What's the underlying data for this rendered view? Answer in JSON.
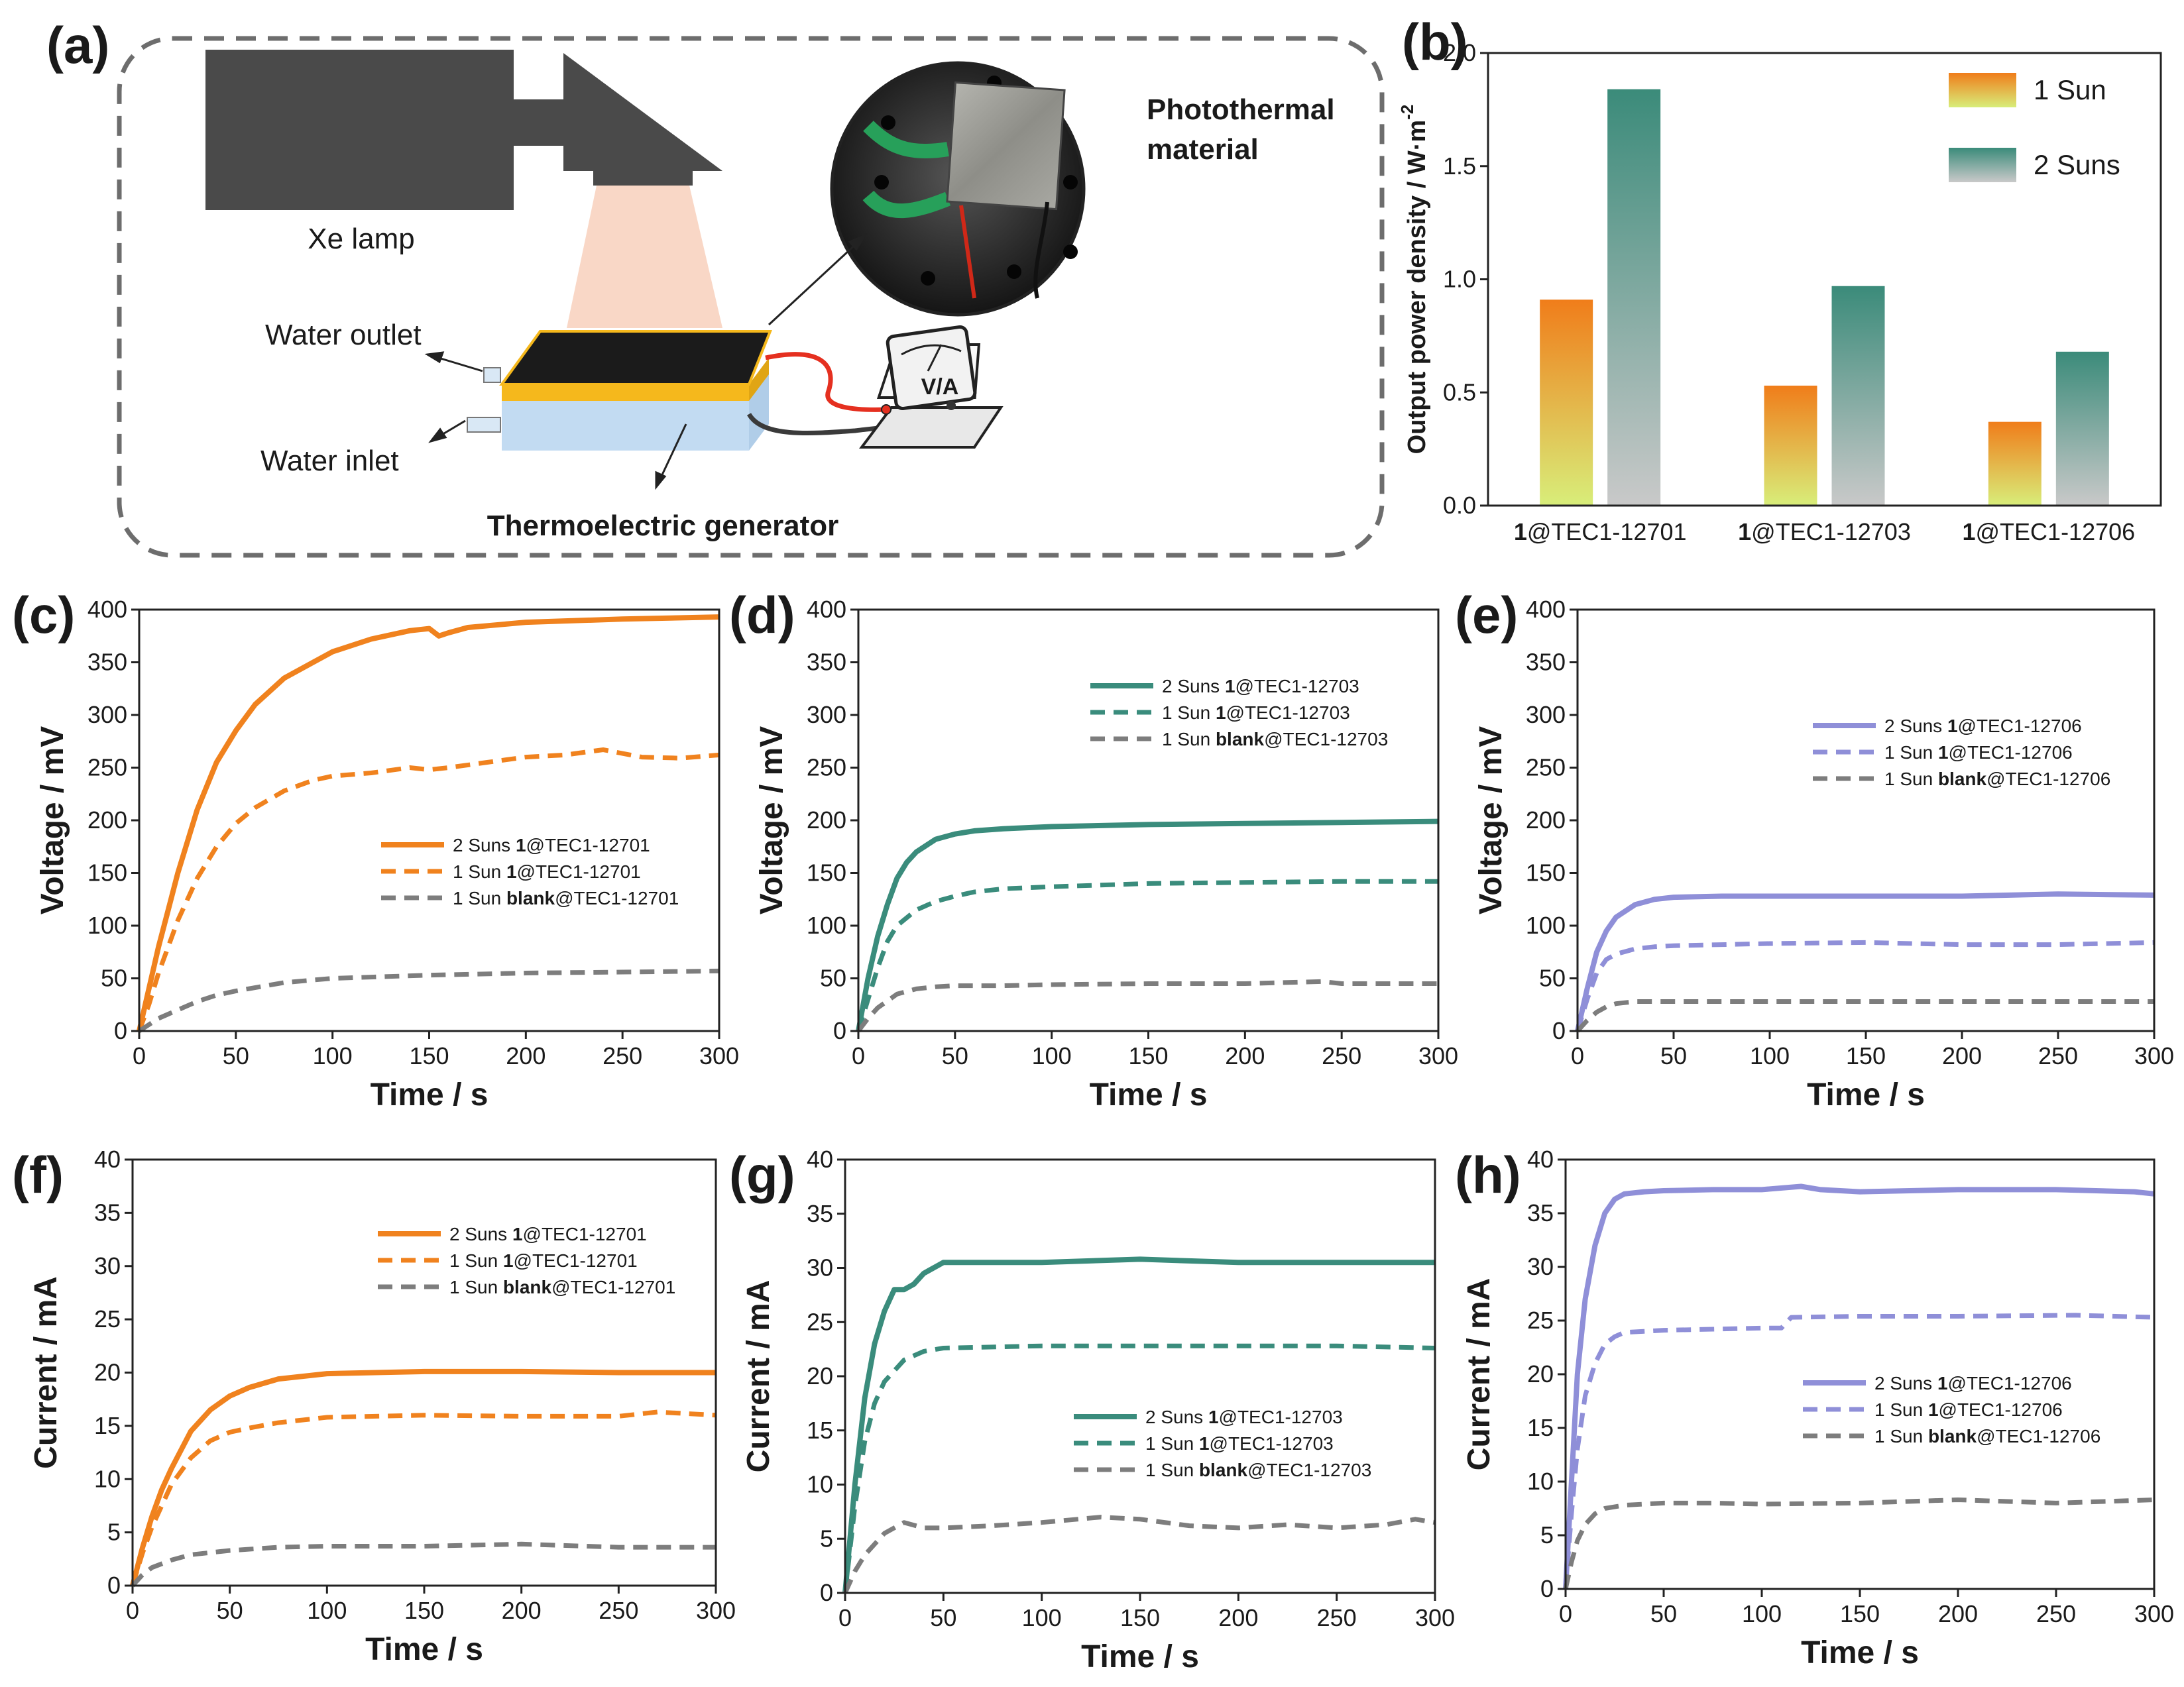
{
  "panels": {
    "a": {
      "label": "(a)",
      "xe_lamp": "Xe lamp",
      "water_outlet": "Water outlet",
      "water_inlet": "Water inlet",
      "photothermal": [
        "Photothermal",
        "material"
      ],
      "generator": "Thermoelectric generator",
      "meter_text": "V/A"
    },
    "b": {
      "label": "(b)"
    },
    "c": {
      "label": "(c)"
    },
    "d": {
      "label": "(d)"
    },
    "e": {
      "label": "(e)"
    },
    "f": {
      "label": "(f)"
    },
    "g": {
      "label": "(g)"
    },
    "h": {
      "label": "(h)"
    }
  },
  "colors": {
    "orange": "#f0821e",
    "teal": "#3a8c7c",
    "purple": "#8f8fd8",
    "gray": "#7d7d7d",
    "bar_orange_top": "#f07d1a",
    "bar_orange_bottom": "#d8ee7a",
    "bar_teal_top": "#3b8b7a",
    "bar_teal_bottom": "#c9c9c9"
  },
  "chart_data": [
    {
      "id": "b",
      "type": "bar",
      "categories": [
        {
          "bold": "1",
          "text": "@TEC1-12701"
        },
        {
          "bold": "1",
          "text": "@TEC1-12703"
        },
        {
          "bold": "1",
          "text": "@TEC1-12706"
        }
      ],
      "series": [
        {
          "name": "1 Sun",
          "values": [
            0.91,
            0.53,
            0.37
          ],
          "gradient": "orange"
        },
        {
          "name": "2 Suns",
          "values": [
            1.84,
            0.97,
            0.68
          ],
          "gradient": "teal"
        }
      ],
      "ylabel": "Output power density / W·m",
      "ylabel_sup": "-2",
      "ylim": [
        0,
        2.0
      ],
      "yticks": [
        "0.0",
        "0.5",
        "1.0",
        "1.5",
        "2.0"
      ],
      "legend_position": "top-right"
    },
    {
      "id": "c",
      "type": "line",
      "xlabel": "Time / s",
      "ylabel": "Voltage / mV",
      "xlim": [
        0,
        300
      ],
      "ylim": [
        0,
        400
      ],
      "xticks": [
        "0",
        "50",
        "100",
        "150",
        "200",
        "250",
        "300"
      ],
      "yticks": [
        "0",
        "50",
        "100",
        "150",
        "200",
        "250",
        "300",
        "350",
        "400"
      ],
      "legend_position": "center-right",
      "series": [
        {
          "prefix": "2 Suns ",
          "bold": "1",
          "suffix": "@TEC1-12701",
          "color": "orange",
          "dash": "solid",
          "x": [
            0,
            5,
            10,
            15,
            20,
            30,
            40,
            50,
            60,
            75,
            90,
            100,
            120,
            140,
            150,
            155,
            160,
            170,
            200,
            250,
            300
          ],
          "y": [
            0,
            40,
            80,
            115,
            150,
            210,
            255,
            285,
            310,
            335,
            350,
            360,
            372,
            380,
            382,
            375,
            378,
            383,
            388,
            391,
            393
          ]
        },
        {
          "prefix": "1 Sun ",
          "bold": "1",
          "suffix": "@TEC1-12701",
          "color": "orange",
          "dash": "dashed",
          "x": [
            0,
            5,
            10,
            15,
            20,
            30,
            40,
            50,
            60,
            75,
            90,
            100,
            120,
            140,
            150,
            160,
            180,
            200,
            220,
            240,
            260,
            280,
            300
          ],
          "y": [
            0,
            25,
            55,
            80,
            105,
            145,
            175,
            197,
            212,
            228,
            238,
            242,
            245,
            250,
            248,
            250,
            255,
            260,
            262,
            267,
            260,
            259,
            262
          ]
        },
        {
          "prefix": "1 Sun ",
          "bold": "blank",
          "suffix": "@TEC1-12701",
          "color": "gray",
          "dash": "dashed",
          "x": [
            0,
            10,
            20,
            30,
            40,
            50,
            75,
            100,
            150,
            200,
            250,
            300
          ],
          "y": [
            0,
            12,
            20,
            28,
            34,
            38,
            46,
            50,
            53,
            55,
            56,
            57
          ]
        }
      ]
    },
    {
      "id": "d",
      "type": "line",
      "xlabel": "Time / s",
      "ylabel": "Voltage / mV",
      "xlim": [
        0,
        300
      ],
      "ylim": [
        0,
        400
      ],
      "xticks": [
        "0",
        "50",
        "100",
        "150",
        "200",
        "250",
        "300"
      ],
      "yticks": [
        "0",
        "50",
        "100",
        "150",
        "200",
        "250",
        "300",
        "350",
        "400"
      ],
      "legend_position": "top-right",
      "series": [
        {
          "prefix": "2 Suns ",
          "bold": "1",
          "suffix": "@TEC1-12703",
          "color": "teal",
          "dash": "solid",
          "x": [
            0,
            5,
            10,
            15,
            20,
            25,
            30,
            40,
            50,
            60,
            75,
            100,
            150,
            200,
            250,
            300
          ],
          "y": [
            0,
            50,
            90,
            120,
            145,
            160,
            170,
            182,
            187,
            190,
            192,
            194,
            196,
            197,
            198,
            199
          ]
        },
        {
          "prefix": "1 Sun ",
          "bold": "1",
          "suffix": "@TEC1-12703",
          "color": "teal",
          "dash": "dashed",
          "x": [
            0,
            5,
            10,
            15,
            20,
            30,
            40,
            50,
            60,
            75,
            100,
            150,
            200,
            250,
            300
          ],
          "y": [
            0,
            30,
            60,
            85,
            100,
            115,
            123,
            128,
            132,
            135,
            137,
            140,
            141,
            142,
            142
          ]
        },
        {
          "prefix": "1 Sun ",
          "bold": "blank",
          "suffix": "@TEC1-12703",
          "color": "gray",
          "dash": "dashed",
          "x": [
            0,
            5,
            10,
            20,
            30,
            40,
            50,
            75,
            100,
            150,
            200,
            240,
            250,
            300
          ],
          "y": [
            0,
            12,
            22,
            35,
            40,
            42,
            43,
            43,
            44,
            45,
            45,
            47,
            45,
            45
          ]
        }
      ]
    },
    {
      "id": "e",
      "type": "line",
      "xlabel": "Time / s",
      "ylabel": "Voltage / mV",
      "xlim": [
        0,
        300
      ],
      "ylim": [
        0,
        400
      ],
      "xticks": [
        "0",
        "50",
        "100",
        "150",
        "200",
        "250",
        "300"
      ],
      "yticks": [
        "0",
        "50",
        "100",
        "150",
        "200",
        "250",
        "300",
        "350",
        "400"
      ],
      "legend_position": "top-right",
      "series": [
        {
          "prefix": "2 Suns ",
          "bold": "1",
          "suffix": "@TEC1-12706",
          "color": "purple",
          "dash": "solid",
          "x": [
            0,
            5,
            10,
            15,
            20,
            30,
            40,
            50,
            75,
            100,
            150,
            200,
            250,
            300
          ],
          "y": [
            0,
            40,
            75,
            95,
            108,
            120,
            125,
            127,
            128,
            128,
            128,
            128,
            130,
            129
          ]
        },
        {
          "prefix": "1 Sun ",
          "bold": "1",
          "suffix": "@TEC1-12706",
          "color": "purple",
          "dash": "dashed",
          "x": [
            0,
            5,
            10,
            15,
            20,
            30,
            40,
            50,
            75,
            100,
            150,
            200,
            250,
            300
          ],
          "y": [
            0,
            30,
            55,
            68,
            73,
            78,
            80,
            81,
            82,
            83,
            84,
            82,
            82,
            84
          ]
        },
        {
          "prefix": "1 Sun ",
          "bold": "blank",
          "suffix": "@TEC1-12706",
          "color": "gray",
          "dash": "dashed",
          "x": [
            0,
            5,
            10,
            15,
            20,
            30,
            50,
            100,
            150,
            200,
            250,
            300
          ],
          "y": [
            0,
            10,
            18,
            23,
            26,
            28,
            28,
            28,
            28,
            28,
            28,
            28
          ]
        }
      ]
    },
    {
      "id": "f",
      "type": "line",
      "xlabel": "Time / s",
      "ylabel": "Current / mA",
      "xlim": [
        0,
        300
      ],
      "ylim": [
        0,
        40
      ],
      "xticks": [
        "0",
        "50",
        "100",
        "150",
        "200",
        "250",
        "300"
      ],
      "yticks": [
        "0",
        "5",
        "10",
        "15",
        "20",
        "25",
        "30",
        "35",
        "40"
      ],
      "legend_position": "top-right",
      "series": [
        {
          "prefix": "2 Suns ",
          "bold": "1",
          "suffix": "@TEC1-12701",
          "color": "orange",
          "dash": "solid",
          "x": [
            0,
            5,
            10,
            15,
            20,
            30,
            40,
            50,
            60,
            75,
            100,
            150,
            200,
            250,
            300
          ],
          "y": [
            0,
            3.5,
            6.5,
            9,
            11,
            14.5,
            16.5,
            17.8,
            18.6,
            19.4,
            19.9,
            20.1,
            20.1,
            20,
            20
          ]
        },
        {
          "prefix": "1 Sun ",
          "bold": "1",
          "suffix": "@TEC1-12701",
          "color": "orange",
          "dash": "dashed",
          "x": [
            0,
            5,
            10,
            15,
            20,
            30,
            40,
            50,
            60,
            75,
            100,
            150,
            200,
            250,
            270,
            300
          ],
          "y": [
            0,
            3,
            5.5,
            7.5,
            9.5,
            12,
            13.6,
            14.4,
            14.8,
            15.3,
            15.8,
            16,
            15.9,
            15.9,
            16.3,
            16
          ]
        },
        {
          "prefix": "1 Sun ",
          "bold": "blank",
          "suffix": "@TEC1-12701",
          "color": "gray",
          "dash": "dashed",
          "x": [
            0,
            5,
            10,
            20,
            30,
            50,
            75,
            100,
            150,
            200,
            250,
            300
          ],
          "y": [
            0,
            1,
            1.7,
            2.4,
            2.9,
            3.3,
            3.6,
            3.7,
            3.7,
            3.9,
            3.6,
            3.6
          ]
        }
      ]
    },
    {
      "id": "g",
      "type": "line",
      "xlabel": "Time / s",
      "ylabel": "Current / mA",
      "xlim": [
        0,
        300
      ],
      "ylim": [
        0,
        40
      ],
      "xticks": [
        "0",
        "50",
        "100",
        "150",
        "200",
        "250",
        "300"
      ],
      "yticks": [
        "0",
        "5",
        "10",
        "15",
        "20",
        "25",
        "30",
        "35",
        "40"
      ],
      "legend_position": "bottom-right",
      "series": [
        {
          "prefix": "2 Suns ",
          "bold": "1",
          "suffix": "@TEC1-12703",
          "color": "teal",
          "dash": "solid",
          "x": [
            0,
            5,
            10,
            15,
            20,
            25,
            30,
            35,
            40,
            50,
            75,
            100,
            150,
            200,
            250,
            300
          ],
          "y": [
            0,
            10,
            18,
            23,
            26,
            28,
            28,
            28.5,
            29.5,
            30.5,
            30.5,
            30.5,
            30.8,
            30.5,
            30.5,
            30.5
          ]
        },
        {
          "prefix": "1 Sun ",
          "bold": "1",
          "suffix": "@TEC1-12703",
          "color": "teal",
          "dash": "dashed",
          "x": [
            0,
            5,
            10,
            15,
            20,
            30,
            40,
            50,
            75,
            100,
            150,
            200,
            250,
            300
          ],
          "y": [
            0,
            8,
            14,
            17.5,
            19.5,
            21.5,
            22.3,
            22.6,
            22.7,
            22.8,
            22.8,
            22.8,
            22.8,
            22.6
          ]
        },
        {
          "prefix": "1 Sun ",
          "bold": "blank",
          "suffix": "@TEC1-12703",
          "color": "gray",
          "dash": "dashed",
          "x": [
            0,
            5,
            10,
            20,
            30,
            40,
            50,
            75,
            100,
            130,
            150,
            175,
            200,
            225,
            250,
            275,
            290,
            300
          ],
          "y": [
            0,
            2,
            3.5,
            5.5,
            6.5,
            6,
            6,
            6.2,
            6.5,
            7,
            6.8,
            6.2,
            6,
            6.3,
            6,
            6.3,
            6.8,
            6.5
          ]
        }
      ]
    },
    {
      "id": "h",
      "type": "line",
      "xlabel": "Time / s",
      "ylabel": "Current / mA",
      "xlim": [
        0,
        300
      ],
      "ylim": [
        0,
        40
      ],
      "xticks": [
        "0",
        "50",
        "100",
        "150",
        "200",
        "250",
        "300"
      ],
      "yticks": [
        "0",
        "5",
        "10",
        "15",
        "20",
        "25",
        "30",
        "35",
        "40"
      ],
      "legend_position": "center-right",
      "series": [
        {
          "prefix": "2 Suns ",
          "bold": "1",
          "suffix": "@TEC1-12706",
          "color": "purple",
          "dash": "solid",
          "x": [
            0,
            3,
            6,
            10,
            15,
            20,
            25,
            30,
            40,
            50,
            75,
            100,
            120,
            130,
            150,
            200,
            250,
            290,
            300
          ],
          "y": [
            0,
            10,
            20,
            27,
            32,
            35,
            36.3,
            36.8,
            37,
            37.1,
            37.2,
            37.2,
            37.5,
            37.2,
            37,
            37.2,
            37.2,
            37,
            36.8
          ]
        },
        {
          "prefix": "1 Sun ",
          "bold": "1",
          "suffix": "@TEC1-12706",
          "color": "purple",
          "dash": "dashed",
          "x": [
            0,
            3,
            6,
            10,
            15,
            20,
            25,
            30,
            40,
            50,
            75,
            100,
            110,
            115,
            150,
            200,
            260,
            300
          ],
          "y": [
            0,
            7,
            13,
            18,
            21,
            22.8,
            23.5,
            23.9,
            24,
            24.1,
            24.2,
            24.3,
            24.3,
            25.3,
            25.4,
            25.4,
            25.5,
            25.3
          ]
        },
        {
          "prefix": "1 Sun ",
          "bold": "blank",
          "suffix": "@TEC1-12706",
          "color": "gray",
          "dash": "dashed",
          "x": [
            0,
            3,
            6,
            10,
            15,
            20,
            30,
            50,
            75,
            100,
            150,
            200,
            250,
            300
          ],
          "y": [
            0,
            2.5,
            4.5,
            6,
            7,
            7.5,
            7.8,
            8,
            8,
            7.9,
            8,
            8.3,
            8,
            8.3
          ]
        }
      ]
    }
  ]
}
